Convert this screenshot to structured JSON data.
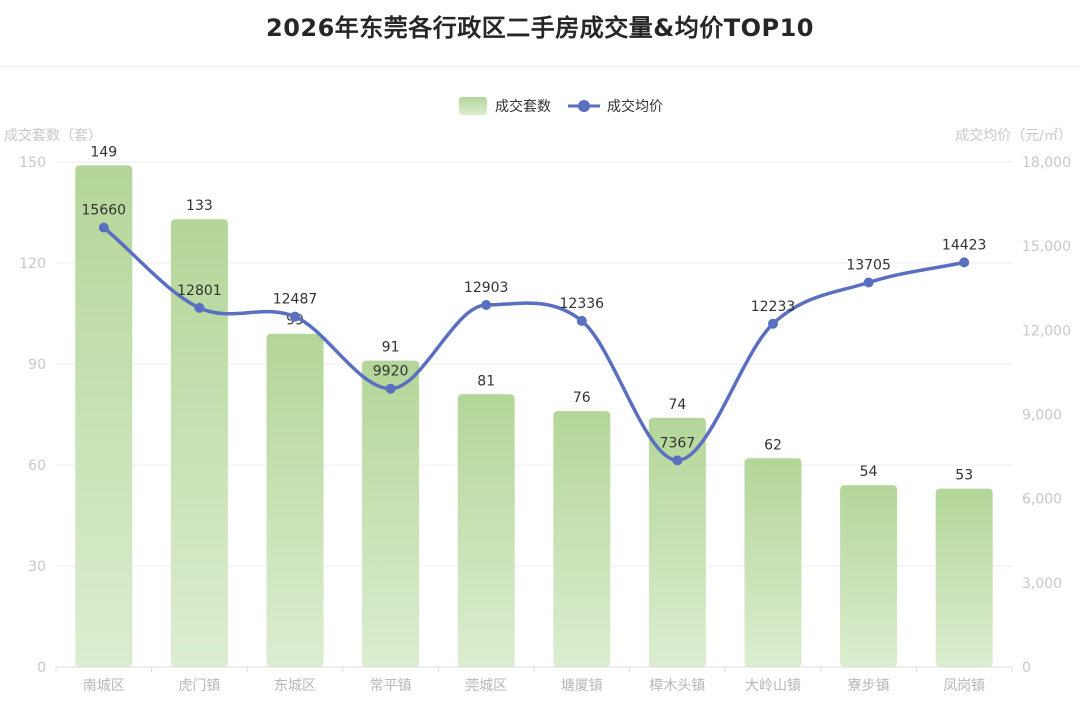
{
  "chart_data": {
    "type": "bar",
    "title": "2026年东莞各行政区二手房成交量&均价TOP10",
    "categories": [
      "南城区",
      "虎门镇",
      "东城区",
      "常平镇",
      "莞城区",
      "塘厦镇",
      "樟木头镇",
      "大岭山镇",
      "寮步镇",
      "凤岗镇"
    ],
    "series": [
      {
        "name": "成交套数",
        "type": "bar",
        "axis": "left",
        "values": [
          149,
          133,
          99,
          91,
          81,
          76,
          74,
          62,
          54,
          53
        ],
        "labels": [
          "149",
          "133",
          "99",
          "91",
          "81",
          "76",
          "74",
          "62",
          "54",
          "53"
        ],
        "color_top": "#b3d699",
        "color_bottom": "#dcedd0"
      },
      {
        "name": "成交均价",
        "type": "line",
        "smooth": true,
        "axis": "right",
        "values": [
          15660,
          12801,
          12487,
          9920,
          12903,
          12336,
          7367,
          12233,
          13705,
          14423
        ],
        "labels": [
          "15660",
          "12801",
          "12487",
          "9920",
          "12903",
          "12336",
          "7367",
          "12233",
          "13705",
          "14423"
        ],
        "color": "#5a6fc0"
      }
    ],
    "y_left": {
      "label": "成交套数（套）",
      "min": 0,
      "max": 150,
      "ticks": [
        0,
        30,
        60,
        90,
        120,
        150
      ],
      "tick_labels": [
        "0",
        "30",
        "60",
        "90",
        "120",
        "150"
      ]
    },
    "y_right": {
      "label": "成交均价（元/㎡）",
      "min": 0,
      "max": 18000,
      "ticks": [
        0,
        3000,
        6000,
        9000,
        12000,
        15000,
        18000
      ],
      "tick_labels": [
        "0",
        "3,000",
        "6,000",
        "9,000",
        "12,000",
        "15,000",
        "18,000"
      ]
    },
    "grid": true,
    "legend_position": "top"
  }
}
